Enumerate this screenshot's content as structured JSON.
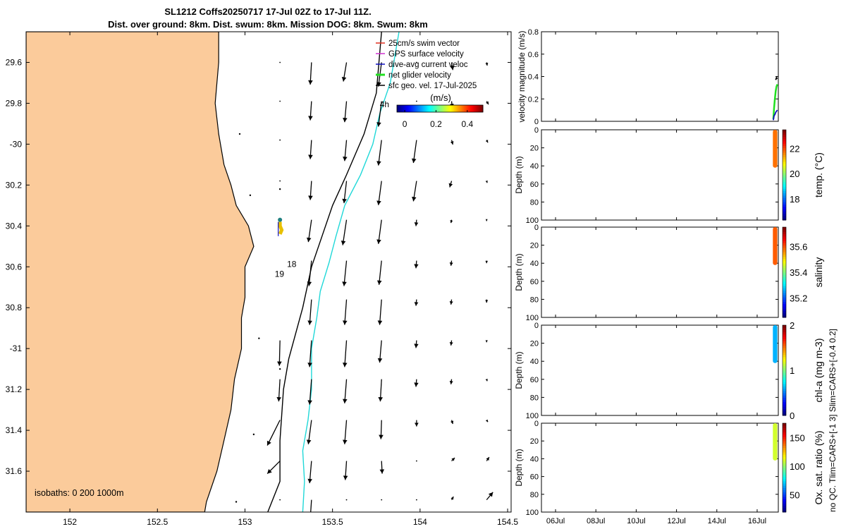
{
  "title": {
    "line1": "SL1212 Coffs20250717 17-Jul 02Z to 17-Jul 11Z.",
    "line2": "Dist. over ground: 8km. Dist. swum: 8km. Mission DOG: 8km. Swum: 8km"
  },
  "colors": {
    "land": "#fbcb9b",
    "isobath_200": "#000000",
    "isobath_1000": "#20d8d8",
    "arrow": "#000000"
  },
  "chart_data": [
    {
      "id": "map",
      "type": "vector-map",
      "xlim": [
        151.75,
        154.52
      ],
      "ylim": [
        -31.8,
        -29.45
      ],
      "x_ticks": [
        152,
        152.5,
        153,
        153.5,
        154,
        154.5
      ],
      "x_tick_labels": [
        "152",
        "152.5",
        "153",
        "153.5",
        "154",
        "154.5"
      ],
      "y_ticks": [
        -29.6,
        -29.8,
        -30,
        -30.2,
        -30.4,
        -30.6,
        -30.8,
        -31,
        -31.2,
        -31.4,
        -31.6
      ],
      "y_tick_labels": [
        "29.6",
        "29.8",
        "-30",
        "30.2",
        "30.4",
        "30.6",
        "30.8",
        "-31",
        "31.2",
        "31.4",
        "31.6"
      ],
      "legend": [
        {
          "label": "25cm/s swim vector",
          "color": "#e03020"
        },
        {
          "label": "GPS surface velocity",
          "color": "#d030d0"
        },
        {
          "label": "dive-avg current veloc",
          "color": "#1010c0"
        },
        {
          "label": "net glider velocity",
          "color": "#20e020"
        },
        {
          "label": "sfc geo. vel. 17-Jul-2025",
          "color": "#000000"
        }
      ],
      "colorbar": {
        "label": "(m/s)",
        "ticks": [
          0,
          0.2,
          0.4
        ],
        "tick_labels": [
          "0",
          "0.2",
          "0.4"
        ],
        "range": [
          -0.05,
          0.5
        ]
      },
      "isobath_label": "isobaths: 0   200  1000m",
      "annotations": [
        {
          "text": "4h",
          "lon": 153.77,
          "lat": -29.82
        },
        {
          "text": "18",
          "lon": 153.24,
          "lat": -30.6
        },
        {
          "text": "19",
          "lon": 153.17,
          "lat": -30.65
        }
      ],
      "vector_grid": {
        "lons": [
          153.2,
          153.38,
          153.58,
          153.78,
          153.98,
          154.18,
          154.38
        ],
        "lats": [
          -29.6,
          -29.79,
          -29.98,
          -30.18,
          -30.37,
          -30.57,
          -30.76,
          -30.96,
          -31.15,
          -31.35,
          -31.55,
          -31.74
        ],
        "start_lon": [
          153.2,
          153.2,
          153.2,
          153.2,
          153.38,
          153.38,
          153.38,
          153.2,
          153.2,
          153.2,
          153.2,
          153.2
        ],
        "u_v_ms": [
          [
            [
              0,
              0
            ],
            [
              -0.02,
              -0.35
            ],
            [
              -0.05,
              -0.3
            ],
            [
              -0.05,
              -0.38
            ],
            [
              0,
              0
            ],
            [
              0.02,
              -0.12
            ],
            [
              0.01,
              -0.05
            ]
          ],
          [
            [
              0,
              0
            ],
            [
              -0.02,
              -0.3
            ],
            [
              -0.03,
              -0.33
            ],
            [
              -0.05,
              -0.4
            ],
            [
              0,
              0
            ],
            [
              0.01,
              -0.1
            ],
            [
              0.03,
              -0.05
            ]
          ],
          [
            [
              0,
              0
            ],
            [
              -0.02,
              -0.3
            ],
            [
              -0.03,
              -0.33
            ],
            [
              -0.05,
              -0.4
            ],
            [
              -0.05,
              -0.36
            ],
            [
              0.02,
              -0.07
            ],
            [
              0.02,
              -0.04
            ]
          ],
          [
            [
              0,
              0
            ],
            [
              -0.02,
              -0.3
            ],
            [
              -0.04,
              -0.35
            ],
            [
              -0.05,
              -0.38
            ],
            [
              -0.05,
              -0.32
            ],
            [
              -0.03,
              -0.1
            ],
            [
              0.01,
              -0.03
            ]
          ],
          [
            [
              0,
              0
            ],
            [
              -0.05,
              -0.35
            ],
            [
              -0.06,
              -0.4
            ],
            [
              -0.05,
              -0.38
            ],
            [
              -0.01,
              -0.1
            ],
            [
              -0.01,
              -0.05
            ],
            [
              0,
              -0.02
            ]
          ],
          [
            [
              0,
              0
            ],
            [
              -0.04,
              -0.4
            ],
            [
              -0.04,
              -0.4
            ],
            [
              -0.04,
              -0.38
            ],
            [
              -0.01,
              -0.12
            ],
            [
              -0.01,
              -0.08
            ],
            [
              0,
              -0.04
            ]
          ],
          [
            [
              0,
              0
            ],
            [
              -0.03,
              -0.4
            ],
            [
              -0.03,
              -0.4
            ],
            [
              -0.03,
              -0.4
            ],
            [
              -0.01,
              -0.1
            ],
            [
              -0.01,
              -0.08
            ],
            [
              0,
              -0.05
            ]
          ],
          [
            [
              -0.01,
              -0.4
            ],
            [
              -0.03,
              -0.42
            ],
            [
              -0.03,
              -0.42
            ],
            [
              -0.03,
              -0.35
            ],
            [
              -0.01,
              -0.12
            ],
            [
              -0.01,
              -0.08
            ],
            [
              0,
              -0.03
            ]
          ],
          [
            [
              -0.02,
              -0.35
            ],
            [
              -0.03,
              -0.4
            ],
            [
              -0.03,
              -0.38
            ],
            [
              -0.02,
              -0.35
            ],
            [
              -0.01,
              -0.12
            ],
            [
              -0.01,
              -0.08
            ],
            [
              0.01,
              -0.03
            ]
          ],
          [
            [
              -0.2,
              -0.4
            ],
            [
              -0.05,
              -0.38
            ],
            [
              -0.03,
              -0.38
            ],
            [
              -0.01,
              -0.3
            ],
            [
              0,
              -0.1
            ],
            [
              0.02,
              -0.06
            ],
            [
              0.02,
              -0.03
            ]
          ],
          [
            [
              -0.2,
              -0.2
            ],
            [
              -0.03,
              -0.35
            ],
            [
              -0.02,
              -0.3
            ],
            [
              0.01,
              -0.2
            ],
            [
              0,
              0
            ],
            [
              0.05,
              0.05
            ],
            [
              0.04,
              0.06
            ]
          ],
          [
            [
              0,
              0
            ],
            [
              -0.02,
              -0.3
            ],
            [
              0,
              0
            ],
            [
              0,
              0
            ],
            [
              0,
              0
            ],
            [
              0.03,
              0.05
            ],
            [
              0.1,
              0.12
            ]
          ]
        ]
      }
    },
    {
      "id": "velocity",
      "type": "line",
      "ylabel": "velocity magnitude (m/s)",
      "ylim": [
        0,
        0.8
      ],
      "y_ticks": [
        0,
        0.2,
        0.4,
        0.6,
        0.8
      ],
      "y_tick_labels": [
        "0",
        "0.2",
        "0.4",
        "0.6",
        "0.8"
      ],
      "series": [
        {
          "name": "net glider velocity",
          "color": "#20e020",
          "x_day": [
            16.8,
            16.84,
            16.88,
            16.92,
            16.96,
            17.0
          ],
          "values": [
            0.02,
            0.12,
            0.2,
            0.27,
            0.31,
            0.33
          ]
        },
        {
          "name": "dive-avg current",
          "color": "#1010c0",
          "x_day": [
            16.8,
            16.84,
            16.88,
            16.92,
            16.96,
            17.0
          ],
          "values": [
            0.01,
            0.05,
            0.06,
            0.08,
            0.09,
            0.1
          ]
        },
        {
          "name": "sfc geo. vel.",
          "color": "#000000",
          "x_day": [
            16.92,
            16.96,
            17.0
          ],
          "values": [
            0.37,
            0.39,
            0.38
          ]
        }
      ]
    },
    {
      "id": "temp",
      "type": "scatter-profile",
      "ylabel": "Depth (m)",
      "ylim": [
        100,
        0
      ],
      "y_ticks": [
        0,
        20,
        40,
        60,
        80,
        100
      ],
      "y_tick_labels": [
        "0",
        "20",
        "40",
        "60",
        "80",
        "100"
      ],
      "colorbar": {
        "label": "temp. (°C)",
        "range": [
          16.3,
          23.5
        ],
        "ticks": [
          18,
          20,
          22
        ],
        "tick_labels": [
          "18",
          "20",
          "22"
        ]
      },
      "profile": {
        "x_day": [
          16.78,
          17.0
        ],
        "depth": [
          0,
          42
        ],
        "value": 21.8
      }
    },
    {
      "id": "salinity",
      "type": "scatter-profile",
      "ylabel": "Depth (m)",
      "ylim": [
        100,
        0
      ],
      "y_ticks": [
        0,
        20,
        40,
        60,
        80,
        100
      ],
      "y_tick_labels": [
        "0",
        "20",
        "40",
        "60",
        "80",
        "100"
      ],
      "colorbar": {
        "label": "salinity",
        "range": [
          35.05,
          35.75
        ],
        "ticks": [
          35.2,
          35.4,
          35.6
        ],
        "tick_labels": [
          "35.2",
          "35.4",
          "35.6"
        ]
      },
      "profile": {
        "x_day": [
          16.78,
          17.0
        ],
        "depth": [
          0,
          42
        ],
        "value": 35.6
      }
    },
    {
      "id": "chla",
      "type": "scatter-profile",
      "ylabel": "Depth (m)",
      "ylim": [
        100,
        0
      ],
      "y_ticks": [
        0,
        20,
        40,
        60,
        80,
        100
      ],
      "y_tick_labels": [
        "0",
        "20",
        "40",
        "60",
        "80",
        "100"
      ],
      "colorbar": {
        "label": "chl-a (mg m-3)",
        "range": [
          0,
          2
        ],
        "ticks": [
          0,
          1,
          2
        ],
        "tick_labels": [
          "0",
          "1",
          "2"
        ]
      },
      "profile": {
        "x_day": [
          16.78,
          17.0
        ],
        "depth": [
          0,
          42
        ],
        "value": 0.6
      }
    },
    {
      "id": "oxygen",
      "type": "scatter-profile",
      "ylabel": "Depth (m)",
      "ylim": [
        100,
        0
      ],
      "y_ticks": [
        0,
        20,
        40,
        60,
        80,
        100
      ],
      "y_tick_labels": [
        "0",
        "20",
        "40",
        "60",
        "80",
        "100"
      ],
      "colorbar": {
        "label": "Ox. sat. ratio (%)",
        "range": [
          20,
          175
        ],
        "ticks": [
          50,
          100,
          150
        ],
        "tick_labels": [
          "50",
          "100",
          "150"
        ]
      },
      "profile": {
        "x_day": [
          16.78,
          17.0
        ],
        "depth": [
          0,
          42
        ],
        "value": 110
      }
    }
  ],
  "time_axis": {
    "xlim_day": [
      5.3,
      17.05
    ],
    "ticks_day": [
      6,
      8,
      10,
      12,
      14,
      16
    ],
    "tick_labels": [
      "06Jul",
      "08Jul",
      "10Jul",
      "12Jul",
      "14Jul",
      "16Jul"
    ]
  },
  "side_note": "no QC. Tlim=CARS+[-1 3] Slim=CARS+[-0.4 0.2]"
}
